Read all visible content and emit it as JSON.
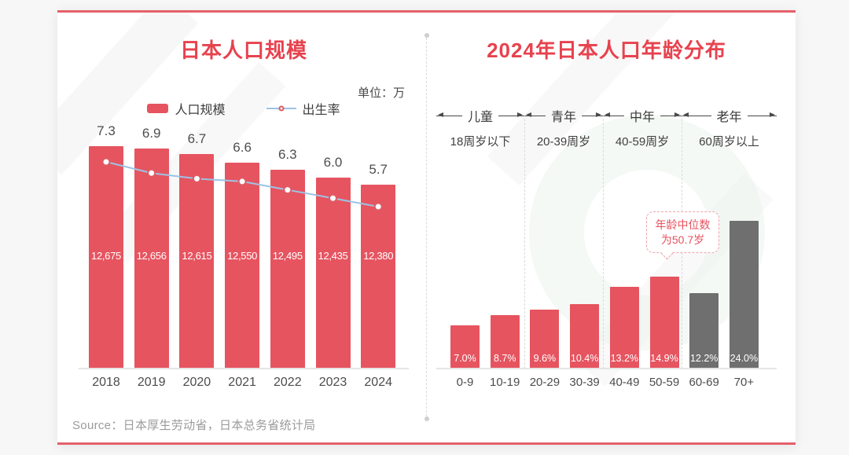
{
  "page": {
    "source_label": "Source：",
    "source_text": "日本厚生劳动省，日本总务省统计局"
  },
  "colors": {
    "accent_red": "#e7424e",
    "bar_red": "#e65460",
    "bar_gray": "#6f6f6f",
    "line_blue": "#9cc3e5",
    "marker_stroke": "#e05a64",
    "border_red": "#e4606a",
    "axis_gray": "#e5e5e5"
  },
  "chart_data": [
    {
      "type": "bar",
      "title": "日本人口规模",
      "unit_label": "单位：万",
      "categories": [
        "2018",
        "2019",
        "2020",
        "2021",
        "2022",
        "2023",
        "2024"
      ],
      "series": [
        {
          "name": "人口规模",
          "type": "bar",
          "values": [
            12675,
            12656,
            12615,
            12550,
            12495,
            12435,
            12380
          ],
          "value_labels": [
            "12,675",
            "12,656",
            "12,615",
            "12,550",
            "12,495",
            "12,435",
            "12,380"
          ]
        },
        {
          "name": "出生率",
          "type": "line",
          "values": [
            7.3,
            6.9,
            6.7,
            6.6,
            6.3,
            6.0,
            5.7
          ],
          "value_labels": [
            "7.3",
            "6.9",
            "6.7",
            "6.6",
            "6.3",
            "6.0",
            "5.7"
          ]
        }
      ],
      "bar_axis_range": [
        10960,
        12675
      ],
      "grid": false,
      "legend_position": "top"
    },
    {
      "type": "bar",
      "title": "2024年日本人口年龄分布",
      "categories": [
        "0-9",
        "10-19",
        "20-29",
        "30-39",
        "40-49",
        "50-59",
        "60-69",
        "70+"
      ],
      "values": [
        7.0,
        8.7,
        9.6,
        10.4,
        13.2,
        14.9,
        12.2,
        24.0
      ],
      "value_labels": [
        "7.0%",
        "8.7%",
        "9.6%",
        "10.4%",
        "13.2%",
        "14.9%",
        "12.2%",
        "24.0%"
      ],
      "bar_palette": [
        "red",
        "red",
        "red",
        "red",
        "red",
        "red",
        "gray",
        "gray"
      ],
      "groups": [
        {
          "name": "儿童",
          "range": "18周岁以下"
        },
        {
          "name": "青年",
          "range": "20-39周岁"
        },
        {
          "name": "中年",
          "range": "40-59周岁"
        },
        {
          "name": "老年",
          "range": "60周岁以上"
        }
      ],
      "annotation": {
        "line1": "年龄中位数",
        "line2": "为50.7岁"
      },
      "ylim": [
        0,
        26
      ],
      "grid": false
    }
  ]
}
